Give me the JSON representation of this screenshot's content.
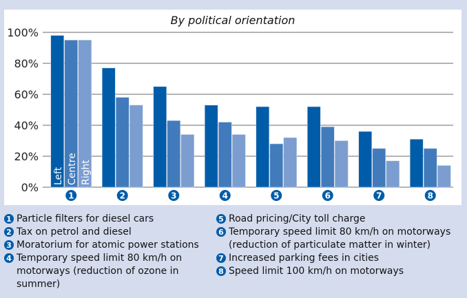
{
  "chart_data": {
    "type": "bar",
    "title": "By political orientation",
    "categories": [
      "1",
      "2",
      "3",
      "4",
      "5",
      "6",
      "7",
      "8"
    ],
    "series": [
      {
        "name": "Left",
        "color": "#005ca8",
        "values": [
          98,
          77,
          65,
          53,
          52,
          52,
          36,
          31
        ]
      },
      {
        "name": "Centre",
        "color": "#427bbb",
        "values": [
          95,
          58,
          43,
          42,
          28,
          39,
          25,
          25
        ]
      },
      {
        "name": "Right",
        "color": "#7b9dd0",
        "values": [
          95,
          53,
          34,
          34,
          32,
          30,
          17,
          14
        ]
      }
    ],
    "yticks": [
      "0%",
      "20%",
      "40%",
      "60%",
      "80%",
      "100%"
    ],
    "ylim": [
      0,
      100
    ],
    "grid": true
  },
  "legend": [
    {
      "num": "1",
      "text": "Particle filters for diesel cars"
    },
    {
      "num": "2",
      "text": "Tax on petrol and diesel"
    },
    {
      "num": "3",
      "text": "Moratorium for atomic power stations"
    },
    {
      "num": "4",
      "text": "Temporary speed limit 80 km/h on motorways (reduction of ozone in summer)"
    },
    {
      "num": "5",
      "text": "Road pricing/City toll charge"
    },
    {
      "num": "6",
      "text": "Temporary speed limit 80 km/h on motor­ways (reduction of particulate matter in winter)"
    },
    {
      "num": "7",
      "text": "Increased parking fees in cities"
    },
    {
      "num": "8",
      "text": "Speed limit 100 km/h on motorways"
    }
  ]
}
